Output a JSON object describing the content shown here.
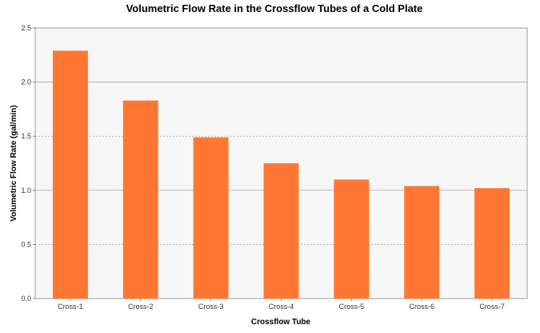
{
  "chart_data": {
    "type": "bar",
    "title": "Volumetric Flow Rate in the Crossflow Tubes of a Cold Plate",
    "xlabel": "Crossflow Tube",
    "ylabel": "Volumetric Flow Rate (gal/min)",
    "categories": [
      "Cross-1",
      "Cross-2",
      "Cross-3",
      "Cross-4",
      "Cross-5",
      "Cross-6",
      "Cross-7"
    ],
    "values": [
      2.29,
      1.83,
      1.49,
      1.25,
      1.1,
      1.04,
      1.02
    ],
    "ylim": [
      0,
      2.5
    ],
    "yticks": [
      "0.0",
      "0.5",
      "1.0",
      "1.5",
      "2.0",
      "2.5"
    ],
    "grid": true,
    "legend": "none",
    "colors": {
      "bar": "#ff7733",
      "plot_background": "#f7f7f7",
      "gridline": "#9a9a9a"
    }
  }
}
